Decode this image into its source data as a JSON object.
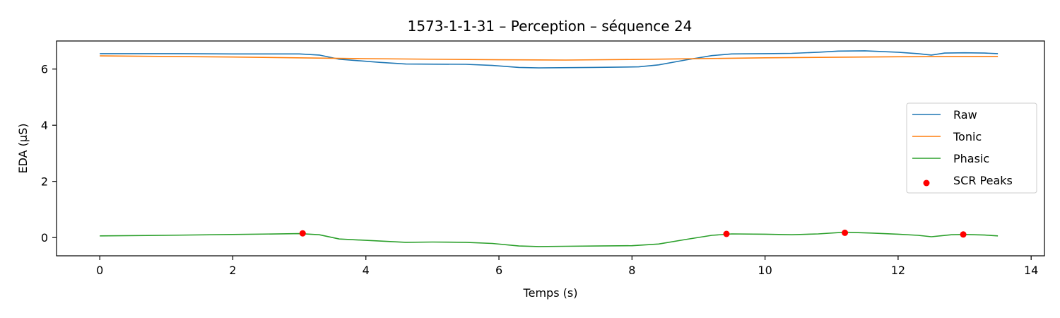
{
  "chart_data": {
    "type": "line",
    "title": "1573-1-1-31 – Perception – séquence 24",
    "xlabel": "Temps (s)",
    "ylabel": "EDA (µS)",
    "xlim": [
      -0.65,
      14.2
    ],
    "ylim": [
      -0.65,
      7.0
    ],
    "xticks": [
      0,
      2,
      4,
      6,
      8,
      10,
      12,
      14
    ],
    "yticks": [
      0,
      2,
      4,
      6
    ],
    "legend_position": "center-right",
    "series": [
      {
        "name": "Raw",
        "color": "#1f77b4",
        "x": [
          0,
          1,
          2,
          3,
          3.3,
          3.6,
          4.2,
          4.6,
          5.5,
          5.9,
          6.3,
          6.6,
          7.4,
          8.1,
          8.4,
          8.8,
          9.2,
          9.5,
          10.0,
          10.4,
          10.8,
          11.1,
          11.5,
          12.0,
          12.3,
          12.5,
          12.7,
          13.0,
          13.3,
          13.5
        ],
        "y": [
          6.55,
          6.55,
          6.54,
          6.54,
          6.5,
          6.35,
          6.24,
          6.18,
          6.17,
          6.13,
          6.06,
          6.04,
          6.06,
          6.08,
          6.15,
          6.32,
          6.48,
          6.54,
          6.55,
          6.56,
          6.6,
          6.64,
          6.65,
          6.6,
          6.55,
          6.5,
          6.57,
          6.58,
          6.57,
          6.55
        ]
      },
      {
        "name": "Tonic",
        "color": "#ff7f0e",
        "x": [
          0,
          2,
          4,
          6,
          7,
          8,
          10,
          12,
          13.5
        ],
        "y": [
          6.47,
          6.43,
          6.37,
          6.33,
          6.32,
          6.34,
          6.4,
          6.44,
          6.45
        ]
      },
      {
        "name": "Phasic",
        "color": "#2ca02c",
        "x": [
          0,
          1,
          2,
          3,
          3.3,
          3.6,
          4.0,
          4.6,
          5.0,
          5.5,
          5.9,
          6.3,
          6.6,
          7.0,
          7.5,
          8.0,
          8.4,
          8.8,
          9.2,
          9.5,
          10.0,
          10.4,
          10.8,
          11.2,
          11.6,
          12.0,
          12.3,
          12.5,
          12.8,
          13.0,
          13.3,
          13.5
        ],
        "y": [
          0.06,
          0.08,
          0.11,
          0.14,
          0.1,
          -0.05,
          -0.1,
          -0.17,
          -0.16,
          -0.17,
          -0.21,
          -0.3,
          -0.32,
          -0.31,
          -0.3,
          -0.29,
          -0.23,
          -0.07,
          0.08,
          0.13,
          0.12,
          0.1,
          0.13,
          0.19,
          0.16,
          0.12,
          0.08,
          0.03,
          0.1,
          0.11,
          0.09,
          0.06
        ]
      }
    ],
    "scatter": {
      "name": "SCR Peaks",
      "color": "#ff0000",
      "x": [
        3.05,
        9.42,
        11.2,
        12.98
      ],
      "y": [
        0.15,
        0.13,
        0.17,
        0.11
      ]
    }
  }
}
